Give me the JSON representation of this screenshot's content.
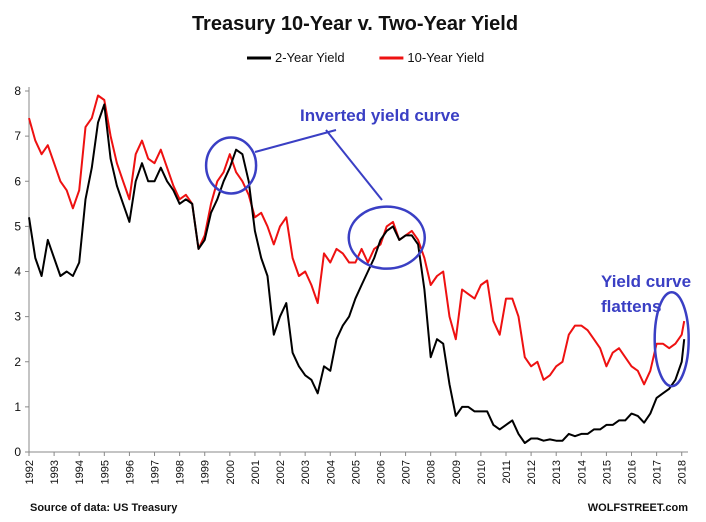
{
  "chart_data": {
    "type": "line",
    "title": "Treasury 10-Year v. Two-Year Yield",
    "xlabel": "",
    "ylabel": "",
    "xlim": [
      1992.0,
      2018.25
    ],
    "ylim": [
      0,
      8
    ],
    "y_ticks": [
      0,
      1,
      2,
      3,
      4,
      5,
      6,
      7,
      8
    ],
    "x_ticks": [
      "1992",
      "1993",
      "1994",
      "1995",
      "1996",
      "1997",
      "1998",
      "1999",
      "2000",
      "2001",
      "2002",
      "2003",
      "2004",
      "2005",
      "2006",
      "2007",
      "2008",
      "2009",
      "2010",
      "2011",
      "2012",
      "2013",
      "2014",
      "2015",
      "2016",
      "2017",
      "2018"
    ],
    "grid": false,
    "legend_position": "top",
    "series": [
      {
        "name": "2-Year Yield",
        "color": "#000000",
        "x": [
          1992.0,
          1992.25,
          1992.5,
          1992.75,
          1993.0,
          1993.25,
          1993.5,
          1993.75,
          1994.0,
          1994.25,
          1994.5,
          1994.75,
          1995.0,
          1995.25,
          1995.5,
          1995.75,
          1996.0,
          1996.25,
          1996.5,
          1996.75,
          1997.0,
          1997.25,
          1997.5,
          1997.75,
          1998.0,
          1998.25,
          1998.5,
          1998.75,
          1999.0,
          1999.25,
          1999.5,
          1999.75,
          2000.0,
          2000.25,
          2000.5,
          2000.75,
          2001.0,
          2001.25,
          2001.5,
          2001.75,
          2002.0,
          2002.25,
          2002.5,
          2002.75,
          2003.0,
          2003.25,
          2003.5,
          2003.75,
          2004.0,
          2004.25,
          2004.5,
          2004.75,
          2005.0,
          2005.25,
          2005.5,
          2005.75,
          2006.0,
          2006.25,
          2006.5,
          2006.75,
          2007.0,
          2007.25,
          2007.5,
          2007.75,
          2008.0,
          2008.25,
          2008.5,
          2008.75,
          2009.0,
          2009.25,
          2009.5,
          2009.75,
          2010.0,
          2010.25,
          2010.5,
          2010.75,
          2011.0,
          2011.25,
          2011.5,
          2011.75,
          2012.0,
          2012.25,
          2012.5,
          2012.75,
          2013.0,
          2013.25,
          2013.5,
          2013.75,
          2014.0,
          2014.25,
          2014.5,
          2014.75,
          2015.0,
          2015.25,
          2015.5,
          2015.75,
          2016.0,
          2016.25,
          2016.5,
          2016.75,
          2017.0,
          2017.25,
          2017.5,
          2017.75,
          2018.0,
          2018.1
        ],
        "values": [
          5.2,
          4.3,
          3.9,
          4.7,
          4.3,
          3.9,
          4.0,
          3.9,
          4.2,
          5.6,
          6.3,
          7.3,
          7.7,
          6.5,
          5.9,
          5.5,
          5.1,
          6.0,
          6.4,
          6.0,
          6.0,
          6.3,
          6.0,
          5.8,
          5.5,
          5.6,
          5.5,
          4.5,
          4.7,
          5.3,
          5.6,
          6.0,
          6.3,
          6.7,
          6.6,
          6.0,
          4.9,
          4.3,
          3.9,
          2.6,
          3.0,
          3.3,
          2.2,
          1.9,
          1.7,
          1.6,
          1.3,
          1.9,
          1.8,
          2.5,
          2.8,
          3.0,
          3.4,
          3.7,
          4.0,
          4.3,
          4.7,
          4.9,
          5.0,
          4.7,
          4.8,
          4.8,
          4.6,
          3.6,
          2.1,
          2.5,
          2.4,
          1.5,
          0.8,
          1.0,
          1.0,
          0.9,
          0.9,
          0.9,
          0.6,
          0.5,
          0.6,
          0.7,
          0.4,
          0.2,
          0.3,
          0.3,
          0.25,
          0.28,
          0.25,
          0.25,
          0.4,
          0.35,
          0.4,
          0.4,
          0.5,
          0.5,
          0.6,
          0.6,
          0.7,
          0.7,
          0.85,
          0.8,
          0.65,
          0.85,
          1.2,
          1.3,
          1.4,
          1.6,
          2.0,
          2.5
        ]
      },
      {
        "name": "10-Year Yield",
        "color": "#ee1111",
        "x": [
          1992.0,
          1992.25,
          1992.5,
          1992.75,
          1993.0,
          1993.25,
          1993.5,
          1993.75,
          1994.0,
          1994.25,
          1994.5,
          1994.75,
          1995.0,
          1995.25,
          1995.5,
          1995.75,
          1996.0,
          1996.25,
          1996.5,
          1996.75,
          1997.0,
          1997.25,
          1997.5,
          1997.75,
          1998.0,
          1998.25,
          1998.5,
          1998.75,
          1999.0,
          1999.25,
          1999.5,
          1999.75,
          2000.0,
          2000.25,
          2000.5,
          2000.75,
          2001.0,
          2001.25,
          2001.5,
          2001.75,
          2002.0,
          2002.25,
          2002.5,
          2002.75,
          2003.0,
          2003.25,
          2003.5,
          2003.75,
          2004.0,
          2004.25,
          2004.5,
          2004.75,
          2005.0,
          2005.25,
          2005.5,
          2005.75,
          2006.0,
          2006.25,
          2006.5,
          2006.75,
          2007.0,
          2007.25,
          2007.5,
          2007.75,
          2008.0,
          2008.25,
          2008.5,
          2008.75,
          2009.0,
          2009.25,
          2009.5,
          2009.75,
          2010.0,
          2010.25,
          2010.5,
          2010.75,
          2011.0,
          2011.25,
          2011.5,
          2011.75,
          2012.0,
          2012.25,
          2012.5,
          2012.75,
          2013.0,
          2013.25,
          2013.5,
          2013.75,
          2014.0,
          2014.25,
          2014.5,
          2014.75,
          2015.0,
          2015.25,
          2015.5,
          2015.75,
          2016.0,
          2016.25,
          2016.5,
          2016.75,
          2017.0,
          2017.25,
          2017.5,
          2017.75,
          2018.0,
          2018.1
        ],
        "values": [
          7.4,
          6.9,
          6.6,
          6.8,
          6.4,
          6.0,
          5.8,
          5.4,
          5.8,
          7.2,
          7.4,
          7.9,
          7.8,
          7.0,
          6.4,
          6.0,
          5.6,
          6.6,
          6.9,
          6.5,
          6.4,
          6.7,
          6.3,
          5.9,
          5.6,
          5.7,
          5.5,
          4.5,
          4.8,
          5.5,
          6.0,
          6.2,
          6.6,
          6.2,
          6.0,
          5.7,
          5.2,
          5.3,
          5.0,
          4.6,
          5.0,
          5.2,
          4.3,
          3.9,
          4.0,
          3.7,
          3.3,
          4.4,
          4.2,
          4.5,
          4.4,
          4.2,
          4.2,
          4.5,
          4.2,
          4.5,
          4.6,
          5.0,
          5.1,
          4.7,
          4.8,
          4.9,
          4.7,
          4.3,
          3.7,
          3.9,
          4.0,
          3.0,
          2.5,
          3.6,
          3.5,
          3.4,
          3.7,
          3.8,
          2.9,
          2.6,
          3.4,
          3.4,
          3.0,
          2.1,
          1.9,
          2.0,
          1.6,
          1.7,
          1.9,
          2.0,
          2.6,
          2.8,
          2.8,
          2.7,
          2.5,
          2.3,
          1.9,
          2.2,
          2.3,
          2.1,
          1.9,
          1.8,
          1.5,
          1.8,
          2.4,
          2.4,
          2.3,
          2.4,
          2.6,
          2.9
        ]
      }
    ],
    "annotations": [
      {
        "text": "Inverted yield curve",
        "color": "#3a3fc4"
      },
      {
        "text": "Yield curve",
        "color": "#3a3fc4"
      },
      {
        "text": "flattens",
        "color": "#3a3fc4"
      }
    ]
  },
  "footer": {
    "source": "Source of data: US Treasury",
    "brand": "WOLFSTREET.com"
  }
}
